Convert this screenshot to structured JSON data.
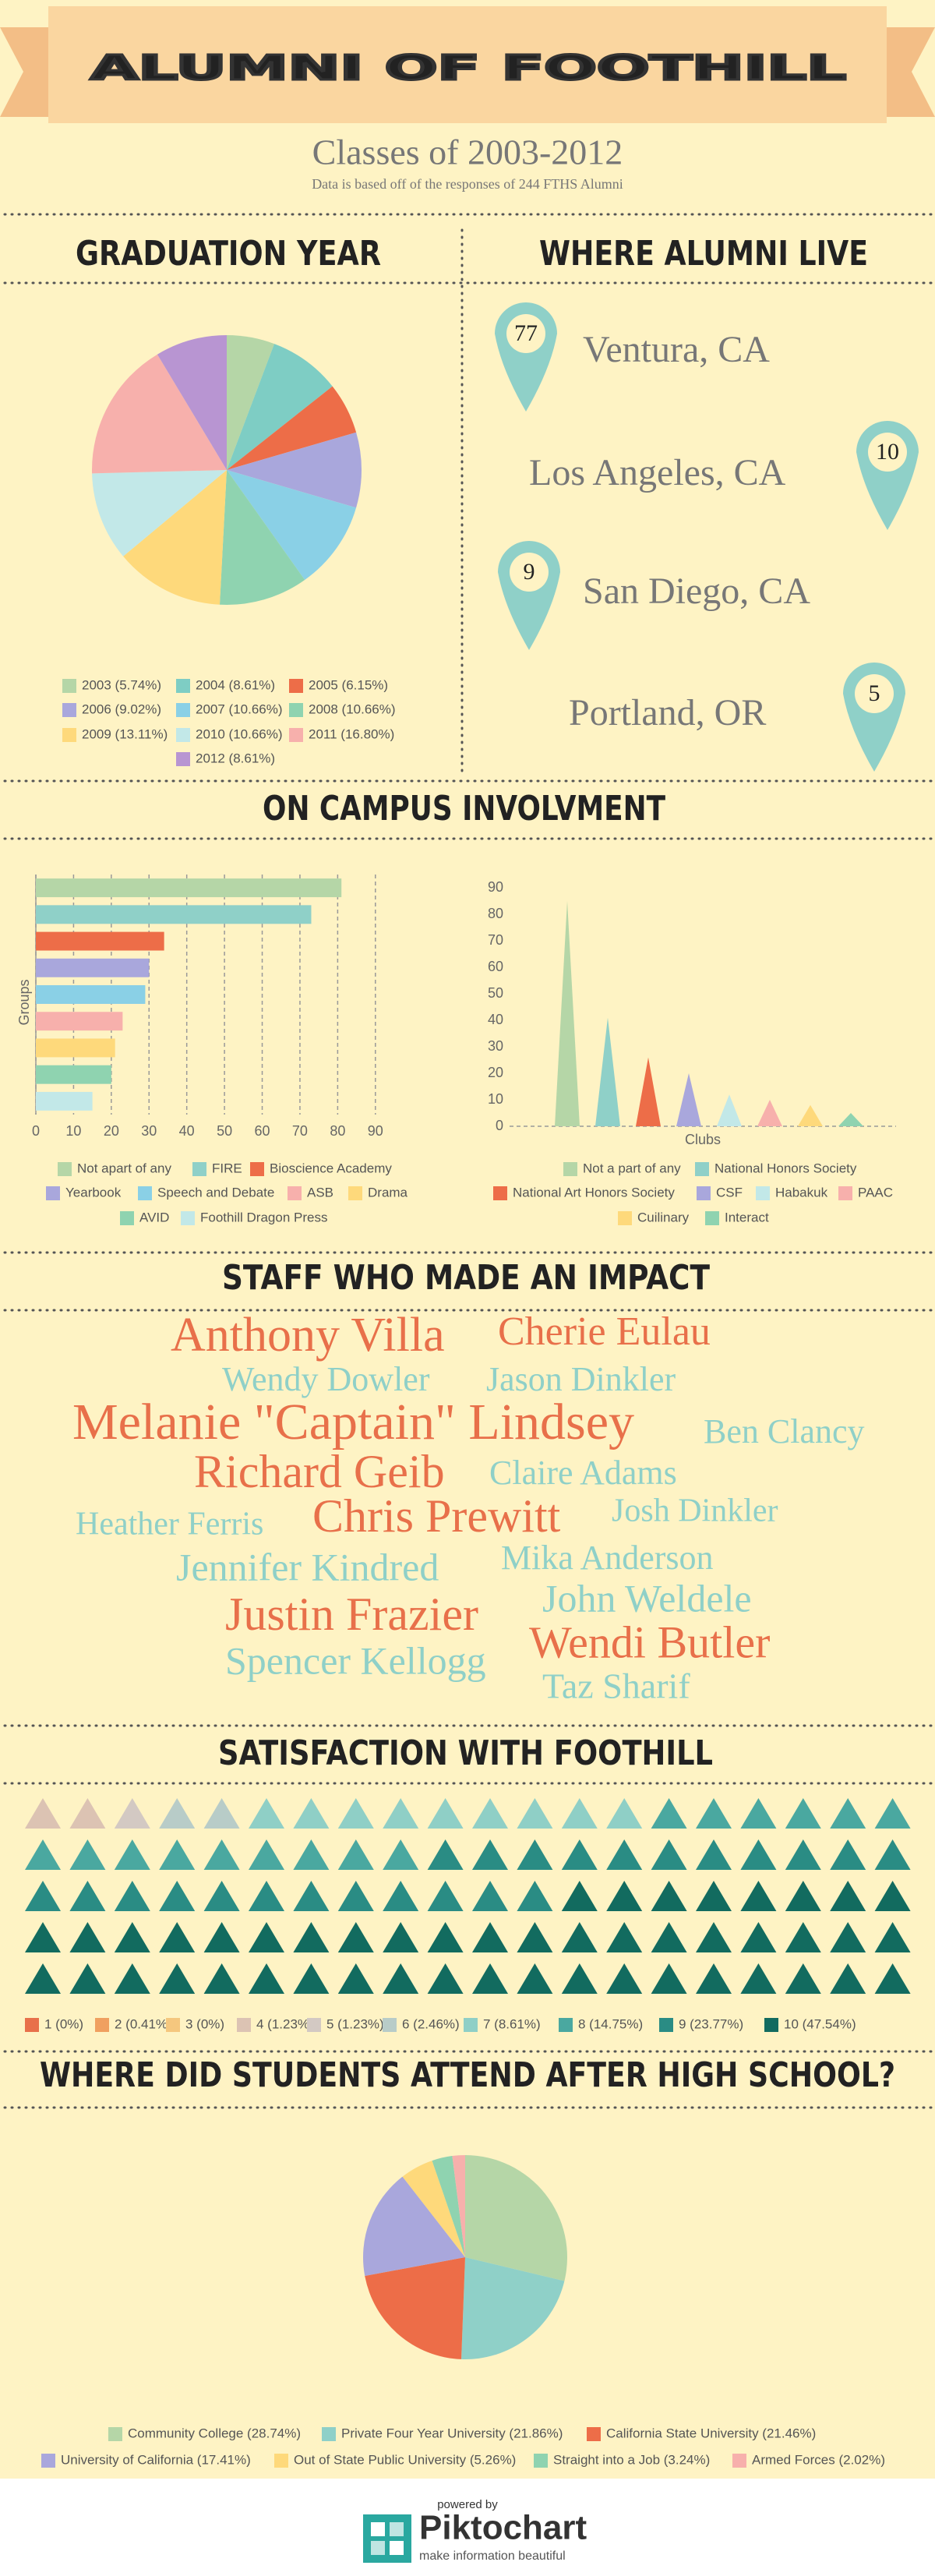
{
  "header": {
    "title": "ALUMNI OF FOOTHILL",
    "subtitle": "Classes of 2003-2012",
    "note": "Data is based off of the responses of 244 FTHS Alumni"
  },
  "sections": {
    "graduation": "GRADUATION YEAR",
    "live": "WHERE ALUMNI LIVE",
    "campus": "ON CAMPUS INVOLVMENT",
    "staff": "STAFF WHO MADE AN IMPACT",
    "satisfaction": "SATISFACTION WITH FOOTHILL",
    "after": "WHERE DID STUDENTS ATTEND AFTER HIGH SCHOOL?"
  },
  "locations": [
    {
      "count": 77,
      "city": "Ventura, CA"
    },
    {
      "count": 10,
      "city": "Los Angeles, CA"
    },
    {
      "count": 9,
      "city": "San Diego, CA"
    },
    {
      "count": 5,
      "city": "Portland, OR"
    }
  ],
  "staff": [
    {
      "name": "Anthony Villa",
      "color": "#e8704a"
    },
    {
      "name": "Cherie Eulau",
      "color": "#e8704a"
    },
    {
      "name": "Wendy Dowler",
      "color": "#8fd0c8"
    },
    {
      "name": "Jason Dinkler",
      "color": "#8fd0c8"
    },
    {
      "name": "Melanie \"Captain\" Lindsey",
      "color": "#e8704a"
    },
    {
      "name": "Ben Clancy",
      "color": "#8fd0c8"
    },
    {
      "name": "Richard Geib",
      "color": "#e8704a"
    },
    {
      "name": "Claire Adams",
      "color": "#8fd0c8"
    },
    {
      "name": "Heather Ferris",
      "color": "#8fd0c8"
    },
    {
      "name": "Chris Prewitt",
      "color": "#e8704a"
    },
    {
      "name": "Josh Dinkler",
      "color": "#8fd0c8"
    },
    {
      "name": "Jennifer Kindred",
      "color": "#8fd0c8"
    },
    {
      "name": "Mika Anderson",
      "color": "#8fd0c8"
    },
    {
      "name": "John Weldele",
      "color": "#8fd0c8"
    },
    {
      "name": "Justin Frazier",
      "color": "#e8704a"
    },
    {
      "name": "Wendi Butler",
      "color": "#e8704a"
    },
    {
      "name": "Spencer Kellogg",
      "color": "#8fd0c8"
    },
    {
      "name": "Taz Sharif",
      "color": "#8fd0c8"
    }
  ],
  "chart_data": [
    {
      "type": "pie",
      "categories": [
        "2003 (5.74%)",
        "2004 (8.61%)",
        "2005 (6.15%)",
        "2006 (9.02%)",
        "2007 (10.66%)",
        "2008 (10.66%)",
        "2009 (13.11%)",
        "2010 (10.66%)",
        "2011 (16.80%)",
        "2012 (8.61%)"
      ],
      "values": [
        5.74,
        8.61,
        6.15,
        9.02,
        10.66,
        10.66,
        13.11,
        10.66,
        16.8,
        8.61
      ],
      "colors": [
        "#b5d6a7",
        "#7ecdc4",
        "#ed6d48",
        "#a9a7dc",
        "#8ad0e6",
        "#8fd3b0",
        "#fed97b",
        "#c2e8e8",
        "#f7b0ac",
        "#b895d2"
      ]
    },
    {
      "type": "bar",
      "orientation": "horizontal",
      "ylabel": "Groups",
      "categories": [
        "Not apart of any",
        "FIRE",
        "Bioscience Academy",
        "Yearbook",
        "Speech and Debate",
        "ASB",
        "Drama",
        "AVID",
        "Foothill Dragon Press"
      ],
      "values": [
        81,
        73,
        34,
        30,
        29,
        23,
        21,
        20,
        15
      ],
      "colors": [
        "#b5d6a7",
        "#8fd0c8",
        "#ed6d48",
        "#a9a7dc",
        "#8ad0e6",
        "#f7b0ac",
        "#fed97b",
        "#8fd3b0",
        "#c2e8e8"
      ],
      "xlim": [
        0,
        95
      ],
      "xticks": [
        0,
        10,
        20,
        30,
        40,
        50,
        60,
        70,
        80,
        90
      ],
      "grid": true
    },
    {
      "type": "spike",
      "xlabel": "Clubs",
      "categories": [
        "Not a part of any",
        "National Honors Society",
        "National Art Honors Society",
        "CSF",
        "Habakuk",
        "PAAC",
        "Cuilinary",
        "Interact"
      ],
      "values": [
        85,
        41,
        26,
        20,
        12,
        10,
        8,
        5
      ],
      "colors": [
        "#b5d6a7",
        "#8fd0c8",
        "#ed6d48",
        "#a9a7dc",
        "#c2e8e8",
        "#f7b0ac",
        "#fed97b",
        "#8fd3b0"
      ],
      "ylim": [
        0,
        90
      ],
      "yticks": [
        0,
        10,
        20,
        30,
        40,
        50,
        60,
        70,
        80,
        90
      ],
      "grid": false
    },
    {
      "type": "pictograph",
      "categories": [
        "1 (0%)",
        "2 (0.41%)",
        "3 (0%)",
        "4 (1.23%)",
        "5 (1.23%)",
        "6 (2.46%)",
        "7 (8.61%)",
        "8 (14.75%)",
        "9 (23.77%)",
        "10 (47.54%)"
      ],
      "values": [
        0,
        0.41,
        0,
        1.23,
        1.23,
        2.46,
        8.61,
        14.75,
        23.77,
        47.54
      ],
      "colors": [
        "#e8704a",
        "#f0a060",
        "#f5c77e",
        "#dcc3b3",
        "#d3c9c3",
        "#b8ccc8",
        "#8fcfc6",
        "#4aa8a0",
        "#2a8c84",
        "#126b5f"
      ]
    },
    {
      "type": "pie",
      "categories": [
        "Community College (28.74%)",
        "Private Four Year University (21.86%)",
        "California State University (21.46%)",
        "University of California (17.41%)",
        "Out of State Public University (5.26%)",
        "Straight into a Job (3.24%)",
        "Armed Forces (2.02%)"
      ],
      "values": [
        28.74,
        21.86,
        21.46,
        17.41,
        5.26,
        3.24,
        2.02
      ],
      "colors": [
        "#b5d6a7",
        "#8fd0c8",
        "#ed6d48",
        "#a9a7dc",
        "#fed97b",
        "#8fd3b0",
        "#f7b0ac"
      ]
    }
  ],
  "footer": {
    "powered": "powered by",
    "brand": "Piktochart",
    "tagline": "make information beautiful"
  }
}
